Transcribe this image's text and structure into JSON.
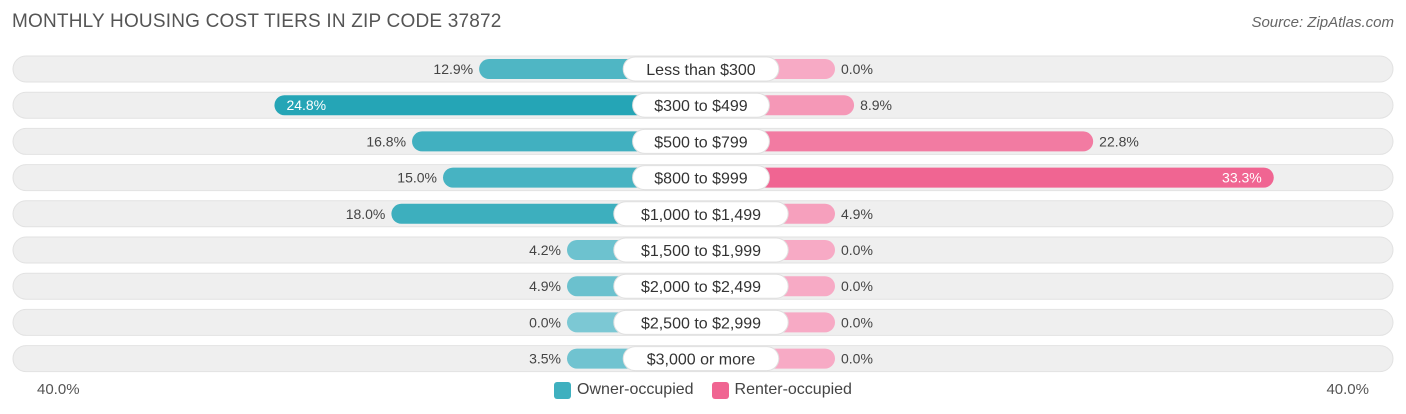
{
  "title": "MONTHLY HOUSING COST TIERS IN ZIP CODE 37872",
  "source": "Source: ZipAtlas.com",
  "colors": {
    "owner_light": "#7cc8d4",
    "owner_dark": "#25a5b6",
    "renter_light": "#f7aac5",
    "renter_dark": "#f06592",
    "track": "#efefef"
  },
  "axis": {
    "left_label": "40.0%",
    "right_label": "40.0%"
  },
  "legend": [
    {
      "label": "Owner-occupied",
      "color": "#3fb0bf"
    },
    {
      "label": "Renter-occupied",
      "color": "#f06592"
    }
  ],
  "chart_data": {
    "type": "bar",
    "orientation": "horizontal-diverging",
    "title": "MONTHLY HOUSING COST TIERS IN ZIP CODE 37872",
    "xlim": [
      -40,
      40
    ],
    "categories": [
      "Less than $300",
      "$300 to $499",
      "$500 to $799",
      "$800 to $999",
      "$1,000 to $1,499",
      "$1,500 to $1,999",
      "$2,000 to $2,499",
      "$2,500 to $2,999",
      "$3,000 or more"
    ],
    "series": [
      {
        "name": "Owner-occupied",
        "values": [
          12.9,
          24.8,
          16.8,
          15.0,
          18.0,
          4.2,
          4.9,
          0.0,
          3.5
        ],
        "labels": [
          "12.9%",
          "24.8%",
          "16.8%",
          "15.0%",
          "18.0%",
          "4.2%",
          "4.9%",
          "0.0%",
          "3.5%"
        ]
      },
      {
        "name": "Renter-occupied",
        "values": [
          0.0,
          8.9,
          22.8,
          33.3,
          4.9,
          0.0,
          0.0,
          0.0,
          0.0
        ],
        "labels": [
          "0.0%",
          "8.9%",
          "22.8%",
          "33.3%",
          "4.9%",
          "0.0%",
          "0.0%",
          "0.0%",
          "0.0%"
        ]
      }
    ],
    "legend_position": "bottom-center"
  }
}
